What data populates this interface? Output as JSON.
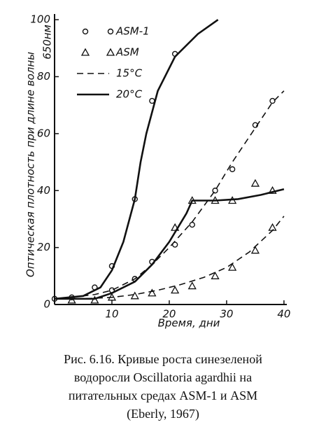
{
  "chart_data": {
    "type": "line",
    "ylabel": "Оптическая плотность при длине волны",
    "ylabel_unit": "650нм",
    "xlabel": "Время, дни",
    "xlim": [
      0,
      40.5
    ],
    "ylim": [
      0,
      102
    ],
    "xticks": [
      10,
      20,
      30,
      40
    ],
    "yticks": [
      0,
      20,
      40,
      60,
      80,
      100
    ],
    "grid": false,
    "legend": "upper left",
    "color": "#111111",
    "series": [
      {
        "name": "ASM-1",
        "marker": "circle",
        "x": [
          0,
          3,
          7,
          10,
          14,
          17,
          21,
          10,
          14,
          17,
          21,
          24,
          28,
          31,
          35,
          38
        ],
        "values": [
          2,
          2.5,
          6,
          13.5,
          37,
          71.5,
          88,
          5,
          9,
          15,
          21,
          28,
          40,
          47.5,
          63,
          71.5
        ]
      },
      {
        "name": "ASM",
        "marker": "triangle",
        "x": [
          21,
          24,
          28,
          31,
          35,
          38,
          3,
          7,
          10,
          14,
          17,
          21,
          24,
          28,
          31,
          35,
          38
        ],
        "values": [
          27,
          36.5,
          36.5,
          36.5,
          42.5,
          40,
          1.5,
          1.5,
          2.5,
          3,
          4,
          5,
          6.5,
          10,
          13,
          19,
          27
        ]
      },
      {
        "name": "15°C",
        "line": "dashed",
        "curves": [
          {
            "x": [
              3,
              7,
              10,
              14,
              17,
              20,
              24,
              28,
              31,
              35,
              38,
              40
            ],
            "values": [
              2.5,
              3.5,
              5,
              9,
              14,
              20,
              29,
              40,
              50,
              62,
              71,
              75
            ]
          },
          {
            "x": [
              0,
              5,
              10,
              14,
              18,
              22,
              26,
              30,
              34,
              38,
              40
            ],
            "values": [
              2,
              2,
              2.5,
              3.5,
              5,
              7,
              9.5,
              13,
              18.5,
              26,
              31
            ]
          }
        ]
      },
      {
        "name": "20°C",
        "line": "solid",
        "curves": [
          {
            "x": [
              0,
              5,
              8,
              10,
              12,
              14,
              15,
              16,
              18,
              21,
              25,
              28.5
            ],
            "values": [
              2,
              3,
              6,
              12,
              22,
              37,
              50,
              60,
              75,
              87,
              95,
              100
            ]
          },
          {
            "x": [
              0,
              7,
              10,
              14,
              17,
              20,
              23,
              24,
              28,
              32,
              36,
              40
            ],
            "values": [
              2,
              2,
              4,
              8,
              14,
              22,
              32,
              36.5,
              36.5,
              37,
              38.5,
              40.5
            ]
          }
        ]
      }
    ]
  },
  "caption": [
    "Рис. 6.16. Кривые роста синезеленой",
    "водоросли Oscillatoria agardhii на",
    "питательных средах ASM-1 и ASM",
    "(Eberly, 1967)"
  ]
}
